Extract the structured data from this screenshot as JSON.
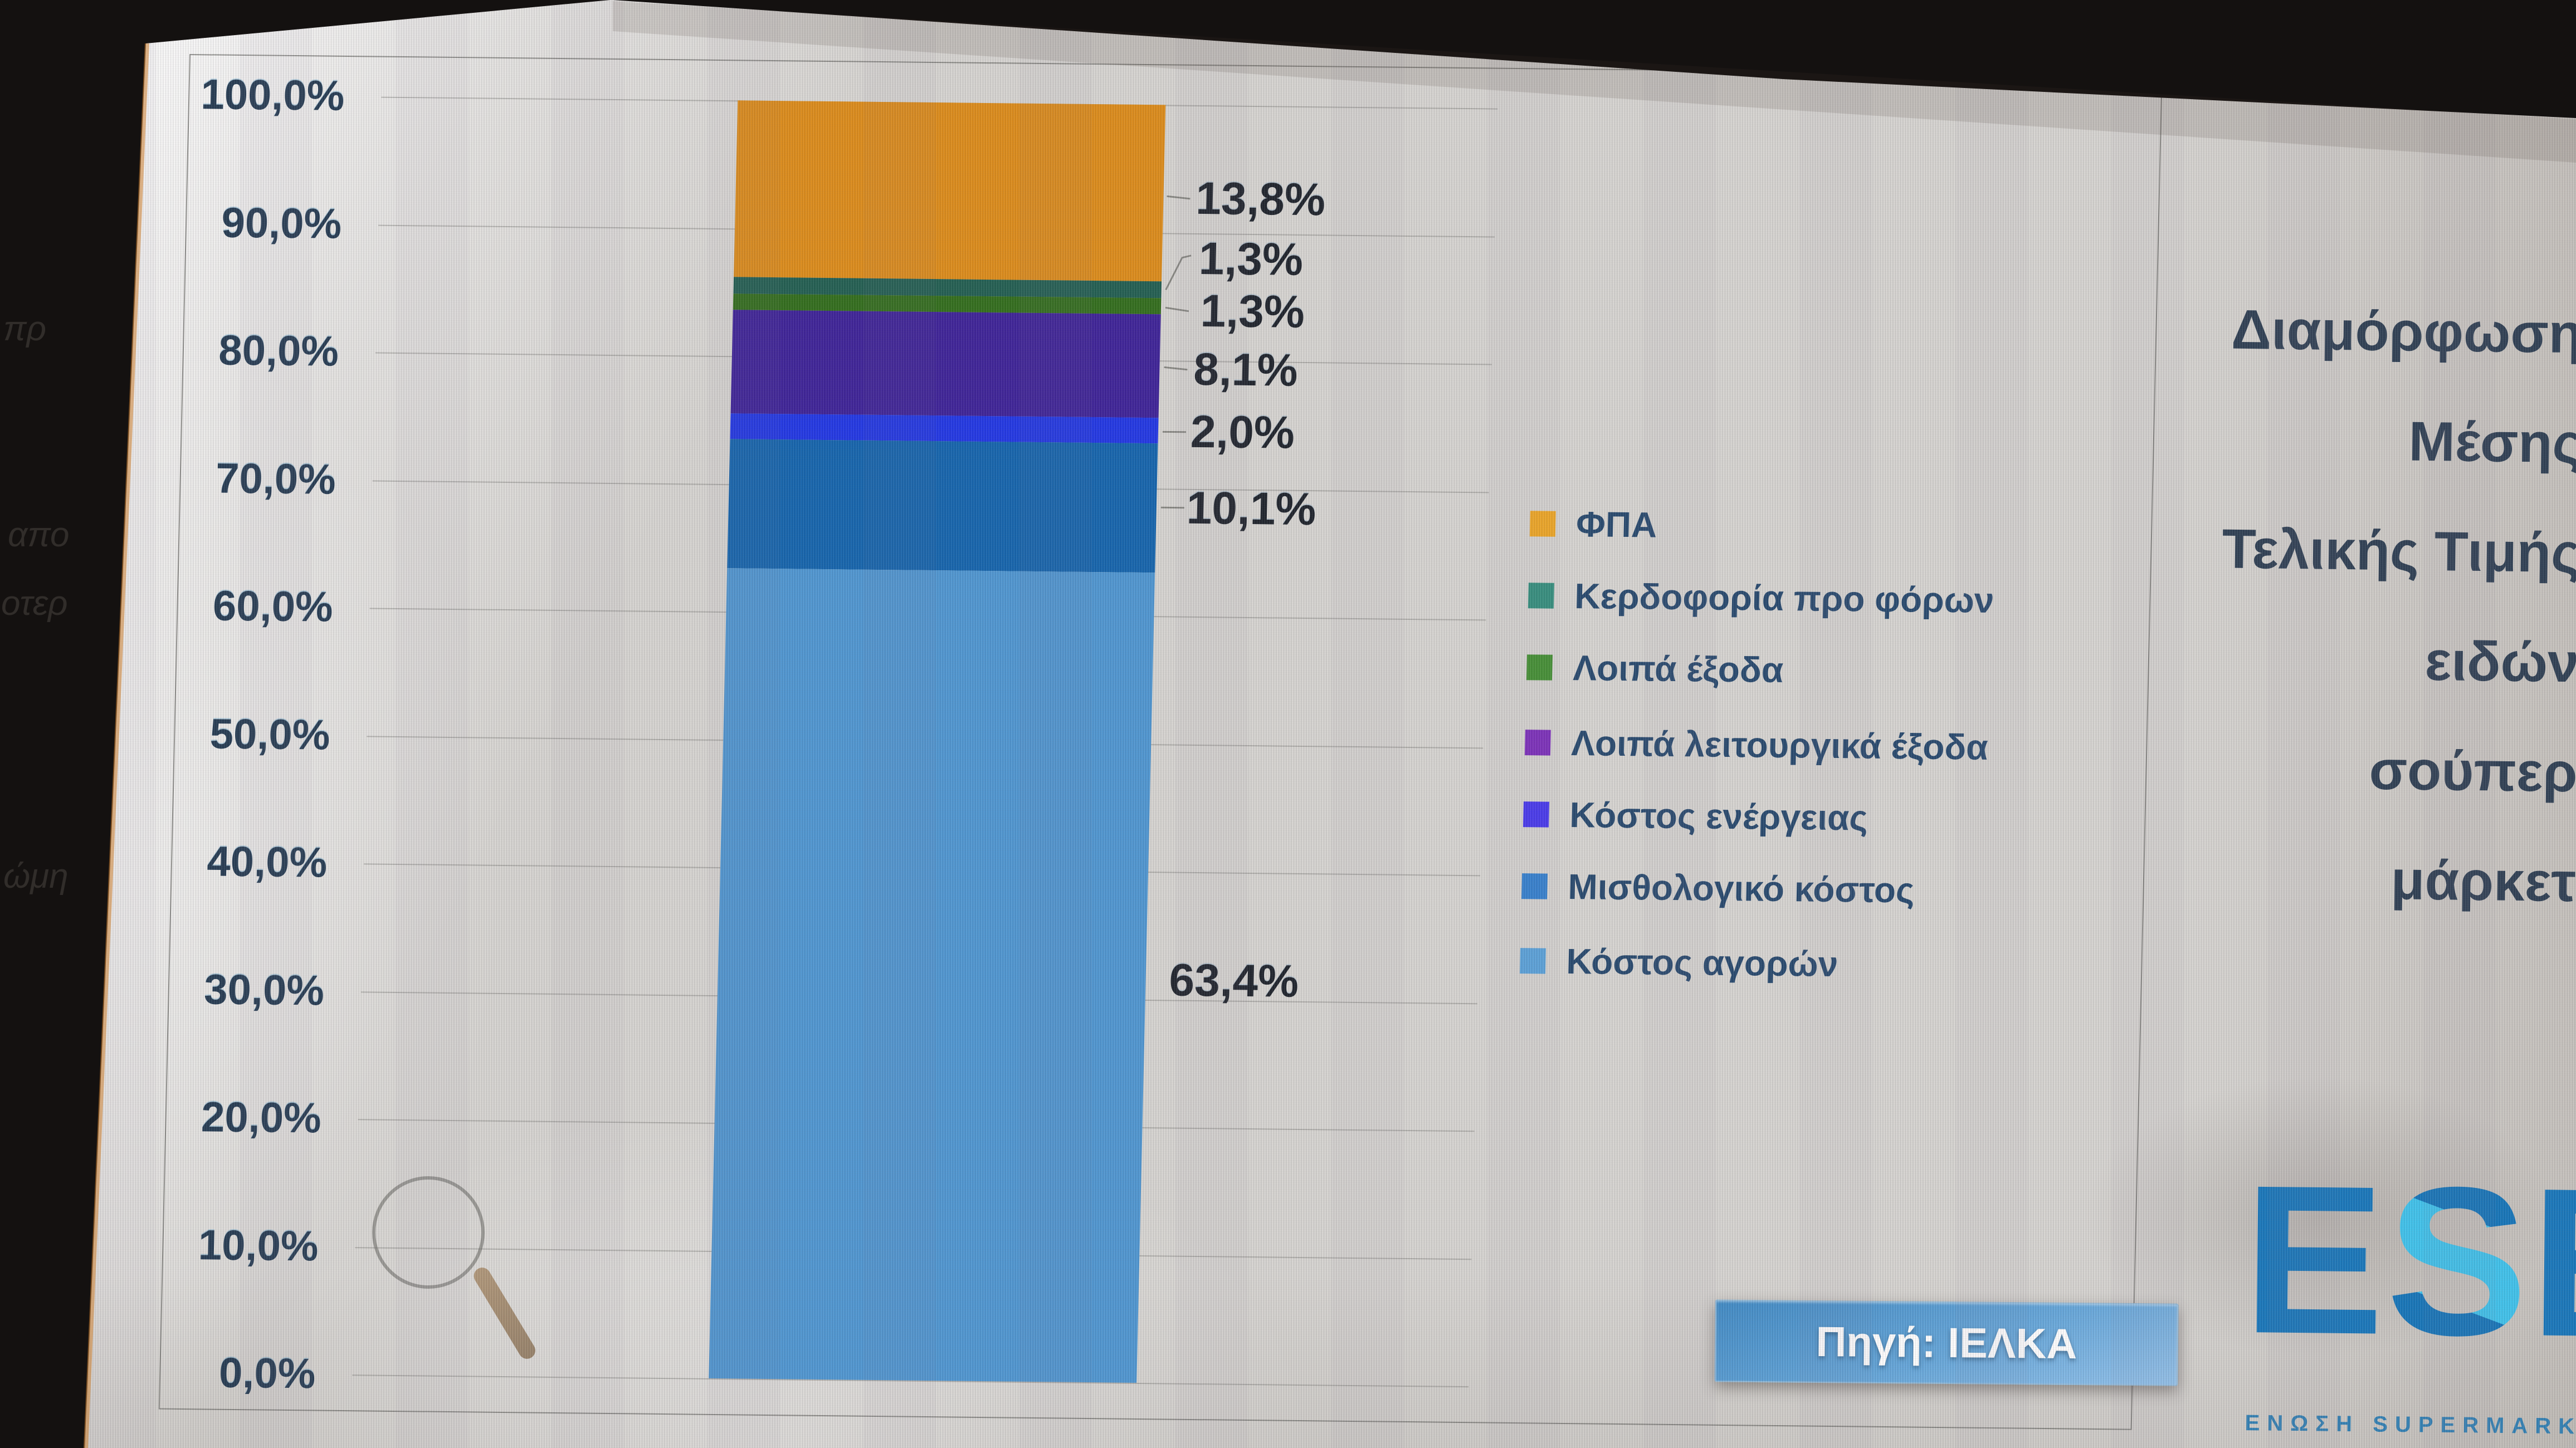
{
  "window": {
    "description": "Photograph of a monitor showing a presentation slide with a 100% stacked column chart"
  },
  "chart_data": {
    "type": "bar",
    "stacked": true,
    "unit": "%",
    "title": "Διαμόρφωση Μέσης Τελικής Τιμής ειδών σούπερ μάρκετ",
    "title_lines": [
      "Διαμόρφωση",
      "Μέσης",
      "Τελικής Τιμής",
      "ειδών",
      "σούπερ",
      "μάρκετ"
    ],
    "categories": [
      ""
    ],
    "series": [
      {
        "name": "ΦΠΑ",
        "value": 13.8,
        "label": "13,8%",
        "bar_color": "#DD8A15",
        "legend_color": "#F2A71E"
      },
      {
        "name": "Κερδοφορία προ φόρων",
        "value": 1.3,
        "label": "1,3%",
        "bar_color": "#1E5C4E",
        "legend_color": "#2F8E7B"
      },
      {
        "name": "Λοιπά έξοδα",
        "value": 1.3,
        "label": "1,3%",
        "bar_color": "#2E6B17",
        "legend_color": "#3F8F2D"
      },
      {
        "name": "Λοιπά λειτουργικά έξοδα",
        "value": 8.1,
        "label": "8,1%",
        "bar_color": "#3A1E96",
        "legend_color": "#7A2ABB"
      },
      {
        "name": "Κόστος ενέργειας",
        "value": 2.0,
        "label": "2,0%",
        "bar_color": "#1D33E4",
        "legend_color": "#4334F0"
      },
      {
        "name": "Μισθολογικό κόστος",
        "value": 10.1,
        "label": "10,1%",
        "bar_color": "#1062AC",
        "legend_color": "#2F7FD0"
      },
      {
        "name": "Κόστος αγορών",
        "value": 63.4,
        "label": "63,4%",
        "bar_color": "#4C95D1",
        "legend_color": "#57A3DC"
      }
    ],
    "yticks": [
      "100,0%",
      "90,0%",
      "80,0%",
      "70,0%",
      "60,0%",
      "50,0%",
      "40,0%",
      "30,0%",
      "20,0%",
      "10,0%",
      "0,0%"
    ],
    "ylim": [
      0,
      100
    ],
    "grid": true,
    "legend_position": "right-of-bar"
  },
  "source_button": {
    "label": "Πηγή: ΙΕΛΚΑ"
  },
  "logo": {
    "letters": [
      "E",
      "S",
      "E"
    ],
    "subtext": "ΕΝΩΣΗ SUPERMARKET ΕΛΛΑ"
  },
  "bezel_reflections": [
    "πρ",
    "απο",
    "οτερ",
    "ώμη"
  ],
  "colors": {
    "axis_text": "#22384f",
    "data_label_text": "#1a1f27",
    "legend_text": "#24466b",
    "title_text": "#2b3c50",
    "button_blue_top": "#3c88c4",
    "button_blue_bottom": "#92c3ec",
    "logo_blue": "#1475ba",
    "logo_cyan": "#3cc2ec",
    "screen_gray": "#d7d5d1"
  }
}
